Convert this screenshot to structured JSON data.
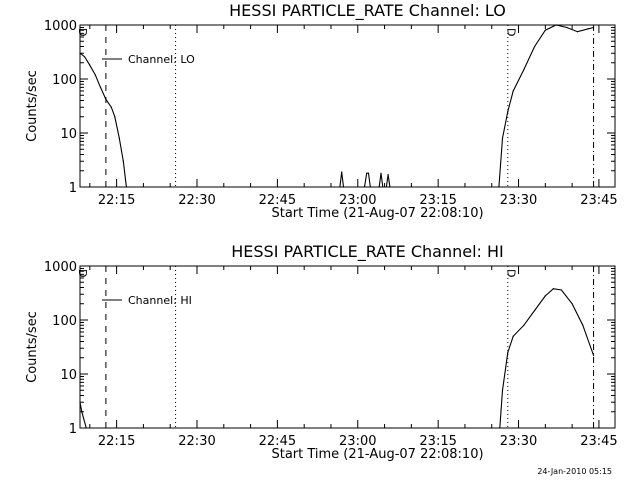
{
  "footer_timestamp": "24-Jan-2010 05:15",
  "chart_data": [
    {
      "type": "line",
      "title": "HESSI PARTICLE_RATE Channel: LO",
      "xlabel": "Start Time (21-Aug-07 22:08:10)",
      "ylabel": "Counts/sec",
      "legend": "Channel: LO",
      "legend_placement": "top-left",
      "y_scale": "log",
      "ylim": [
        1,
        1000
      ],
      "xlim": [
        "22:08:10",
        "23:48"
      ],
      "x_ticks": [
        "22:15",
        "22:30",
        "22:45",
        "23:00",
        "23:15",
        "23:30",
        "23:45"
      ],
      "y_ticks": [
        "1",
        "10",
        "100",
        "1000"
      ],
      "markers": [
        {
          "time": "22:13",
          "style": "dashed"
        },
        {
          "time": "22:26",
          "style": "dotted"
        },
        {
          "time": "23:28",
          "style": "dotted"
        },
        {
          "time": "23:44",
          "style": "dash-dot"
        }
      ],
      "marker_labels": [
        {
          "time": "22:08:30",
          "text": "D"
        },
        {
          "time": "23:28:30",
          "text": "D"
        }
      ],
      "series": [
        {
          "color": "#000000",
          "points": [
            [
              "22:08:10",
              300
            ],
            [
              "22:09",
              260
            ],
            [
              "22:10",
              180
            ],
            [
              "22:11",
              120
            ],
            [
              "22:12",
              70
            ],
            [
              "22:13",
              42
            ],
            [
              "22:14",
              30
            ],
            [
              "22:14:40",
              20
            ],
            [
              "22:15:30",
              8
            ],
            [
              "22:16:15",
              3
            ],
            [
              "22:16:50",
              1
            ]
          ]
        },
        {
          "color": "#000000",
          "points": [
            [
              "22:56:40",
              1
            ],
            [
              "22:57",
              1.9
            ],
            [
              "22:57:20",
              1
            ],
            [
              "23:01:15",
              1
            ],
            [
              "23:01:40",
              1.8
            ],
            [
              "23:02",
              1.8
            ],
            [
              "23:02:20",
              1
            ],
            [
              "23:04",
              1
            ],
            [
              "23:04:20",
              1.8
            ],
            [
              "23:04:40",
              1
            ],
            [
              "23:05:20",
              1
            ],
            [
              "23:05:40",
              1.7
            ],
            [
              "23:06",
              1
            ]
          ]
        },
        {
          "color": "#000000",
          "points": [
            [
              "23:26:20",
              1
            ],
            [
              "23:27",
              8
            ],
            [
              "23:28",
              25
            ],
            [
              "23:29",
              60
            ],
            [
              "23:31",
              150
            ],
            [
              "23:33",
              400
            ],
            [
              "23:35",
              800
            ],
            [
              "23:37",
              1000
            ],
            [
              "23:39",
              900
            ],
            [
              "23:41",
              750
            ],
            [
              "23:43",
              850
            ],
            [
              "23:44",
              900
            ]
          ]
        }
      ]
    },
    {
      "type": "line",
      "title": "HESSI PARTICLE_RATE Channel: HI",
      "xlabel": "Start Time (21-Aug-07 22:08:10)",
      "ylabel": "Counts/sec",
      "legend": "Channel: HI",
      "legend_placement": "top-left",
      "y_scale": "log",
      "ylim": [
        1,
        1000
      ],
      "xlim": [
        "22:08:10",
        "23:48"
      ],
      "x_ticks": [
        "22:15",
        "22:30",
        "22:45",
        "23:00",
        "23:15",
        "23:30",
        "23:45"
      ],
      "y_ticks": [
        "1",
        "10",
        "100",
        "1000"
      ],
      "markers": [
        {
          "time": "22:13",
          "style": "dashed"
        },
        {
          "time": "22:26",
          "style": "dotted"
        },
        {
          "time": "23:28",
          "style": "dotted"
        },
        {
          "time": "23:44",
          "style": "dash-dot"
        }
      ],
      "marker_labels": [
        {
          "time": "22:08:30",
          "text": "D"
        },
        {
          "time": "23:28:30",
          "text": "D"
        }
      ],
      "series": [
        {
          "color": "#000000",
          "points": [
            [
              "22:08:10",
              3
            ],
            [
              "22:08:30",
              2
            ],
            [
              "22:08:50",
              1.5
            ],
            [
              "22:09:20",
              1
            ]
          ]
        },
        {
          "color": "#000000",
          "points": [
            [
              "23:26:30",
              1
            ],
            [
              "23:27",
              5
            ],
            [
              "23:28",
              25
            ],
            [
              "23:29",
              50
            ],
            [
              "23:31",
              80
            ],
            [
              "23:33",
              150
            ],
            [
              "23:35",
              280
            ],
            [
              "23:36:30",
              380
            ],
            [
              "23:38",
              360
            ],
            [
              "23:40",
              200
            ],
            [
              "23:42",
              80
            ],
            [
              "23:44",
              22
            ]
          ]
        }
      ]
    }
  ]
}
